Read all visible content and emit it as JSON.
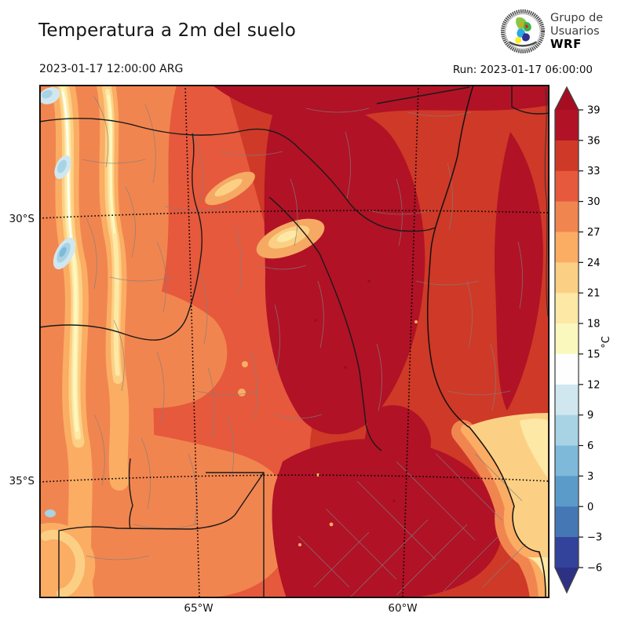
{
  "header": {
    "title": "Temperatura a 2m del suelo",
    "valid_time": "2023-01-17 12:00:00 ARG",
    "run": "Run: 2023-01-17 06:00:00",
    "logo": {
      "line1": "Grupo de",
      "line2": "Usuarios",
      "line3": "WRF"
    }
  },
  "map": {
    "lat_labels": [
      "30°S",
      "35°S"
    ],
    "lon_labels": [
      "65°W",
      "60°W"
    ]
  },
  "colorbar": {
    "unit_label": "°C",
    "tick_labels": [
      "39",
      "36",
      "33",
      "30",
      "27",
      "24",
      "21",
      "18",
      "15",
      "12",
      "9",
      "6",
      "3",
      "0",
      "−3",
      "−6"
    ],
    "segments": [
      {
        "range": "> 39",
        "color": "#A50E21"
      },
      {
        "range": "36–39",
        "color": "#B11226"
      },
      {
        "range": "33–36",
        "color": "#CF3927"
      },
      {
        "range": "30–33",
        "color": "#E6593C"
      },
      {
        "range": "27–30",
        "color": "#F1854F"
      },
      {
        "range": "24–27",
        "color": "#FBAD64"
      },
      {
        "range": "21–24",
        "color": "#FCD084"
      },
      {
        "range": "18–21",
        "color": "#FDE8A6"
      },
      {
        "range": "15–18",
        "color": "#FBF8BE"
      },
      {
        "range": "12–15",
        "color": "#FEFEFE"
      },
      {
        "range": "9–12",
        "color": "#D0E7F0"
      },
      {
        "range": "6–9",
        "color": "#A8D3E5"
      },
      {
        "range": "3–6",
        "color": "#7EB9DA"
      },
      {
        "range": "0–3",
        "color": "#5B9BC9"
      },
      {
        "range": "−3–0",
        "color": "#4577B5"
      },
      {
        "range": "−6–−3",
        "color": "#33439B"
      },
      {
        "range": "< −6",
        "color": "#2D3184"
      }
    ]
  },
  "chart_data": {
    "type": "heatmap",
    "title": "Temperatura a 2m del suelo",
    "valid_time": "2023-01-17 12:00:00 ARG",
    "run_time": "2023-01-17 06:00:00",
    "unit": "°C",
    "levels": [
      -6,
      -3,
      0,
      3,
      6,
      9,
      12,
      15,
      18,
      21,
      24,
      27,
      30,
      33,
      36,
      39
    ],
    "palette_high_to_low": [
      "#A50E21",
      "#B11226",
      "#CF3927",
      "#E6593C",
      "#F1854F",
      "#FBAD64",
      "#FCD084",
      "#FDE8A6",
      "#FBF8BE",
      "#FEFEFE",
      "#D0E7F0",
      "#A8D3E5",
      "#7EB9DA",
      "#5B9BC9",
      "#4577B5",
      "#33439B",
      "#2D3184"
    ],
    "lat_gridlines": [
      "30°S",
      "35°S"
    ],
    "lon_gridlines": [
      "65°W",
      "60°W"
    ],
    "legend_position": "right",
    "description": "Filled-contour 2 m temperature map over central-northern Argentina: hottest (36–39+ °C) over the central-east and Buenos Aires region, 27–33 °C over the west, cool streaks (6–15 °C) along the Andes at the western edge, 21–27 °C along the Río de la Plata coast"
  }
}
